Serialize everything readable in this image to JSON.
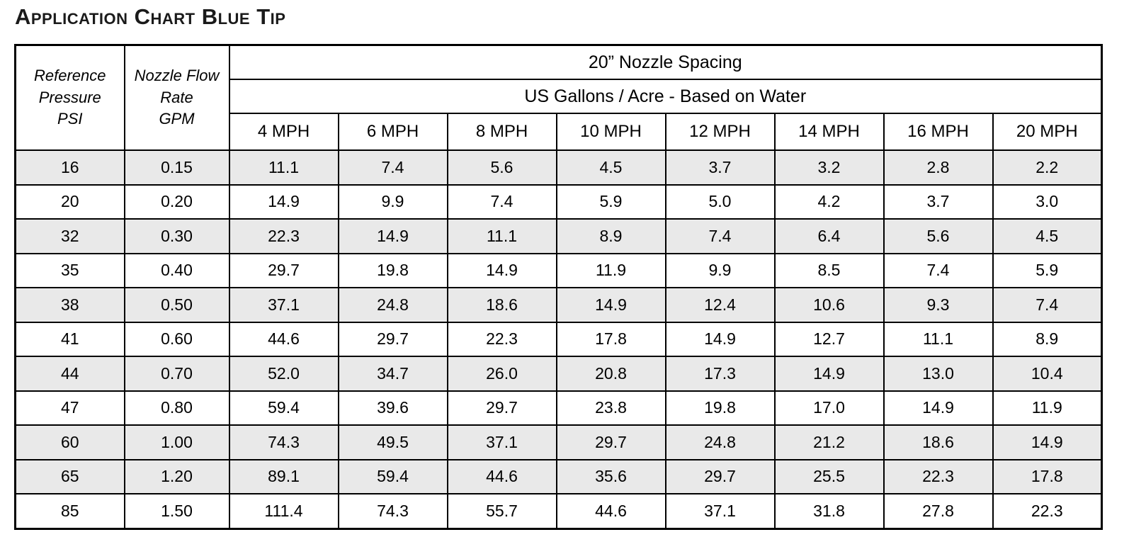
{
  "title": "Application Chart Blue Tip",
  "table": {
    "col1_header": "Reference\nPressure\nPSI",
    "col2_header": "Nozzle Flow\nRate\nGPM",
    "span_header1": "20” Nozzle Spacing",
    "span_header2": "US Gallons / Acre - Based on Water",
    "speed_headers": [
      "4 MPH",
      "6 MPH",
      "8 MPH",
      "10 MPH",
      "12 MPH",
      "14 MPH",
      "16 MPH",
      "20 MPH"
    ],
    "rows": [
      {
        "psi": "16",
        "gpm": "0.15",
        "values": [
          "11.1",
          "7.4",
          "5.6",
          "4.5",
          "3.7",
          "3.2",
          "2.8",
          "2.2"
        ],
        "shaded": true
      },
      {
        "psi": "20",
        "gpm": "0.20",
        "values": [
          "14.9",
          "9.9",
          "7.4",
          "5.9",
          "5.0",
          "4.2",
          "3.7",
          "3.0"
        ],
        "shaded": false
      },
      {
        "psi": "32",
        "gpm": "0.30",
        "values": [
          "22.3",
          "14.9",
          "11.1",
          "8.9",
          "7.4",
          "6.4",
          "5.6",
          "4.5"
        ],
        "shaded": true
      },
      {
        "psi": "35",
        "gpm": "0.40",
        "values": [
          "29.7",
          "19.8",
          "14.9",
          "11.9",
          "9.9",
          "8.5",
          "7.4",
          "5.9"
        ],
        "shaded": false
      },
      {
        "psi": "38",
        "gpm": "0.50",
        "values": [
          "37.1",
          "24.8",
          "18.6",
          "14.9",
          "12.4",
          "10.6",
          "9.3",
          "7.4"
        ],
        "shaded": true
      },
      {
        "psi": "41",
        "gpm": "0.60",
        "values": [
          "44.6",
          "29.7",
          "22.3",
          "17.8",
          "14.9",
          "12.7",
          "11.1",
          "8.9"
        ],
        "shaded": false
      },
      {
        "psi": "44",
        "gpm": "0.70",
        "values": [
          "52.0",
          "34.7",
          "26.0",
          "20.8",
          "17.3",
          "14.9",
          "13.0",
          "10.4"
        ],
        "shaded": true
      },
      {
        "psi": "47",
        "gpm": "0.80",
        "values": [
          "59.4",
          "39.6",
          "29.7",
          "23.8",
          "19.8",
          "17.0",
          "14.9",
          "11.9"
        ],
        "shaded": false
      },
      {
        "psi": "60",
        "gpm": "1.00",
        "values": [
          "74.3",
          "49.5",
          "37.1",
          "29.7",
          "24.8",
          "21.2",
          "18.6",
          "14.9"
        ],
        "shaded": true
      },
      {
        "psi": "65",
        "gpm": "1.20",
        "values": [
          "89.1",
          "59.4",
          "44.6",
          "35.6",
          "29.7",
          "25.5",
          "22.3",
          "17.8"
        ],
        "shaded": true
      },
      {
        "psi": "85",
        "gpm": "1.50",
        "values": [
          "111.4",
          "74.3",
          "55.7",
          "44.6",
          "37.1",
          "31.8",
          "27.8",
          "22.3"
        ],
        "shaded": false
      }
    ]
  }
}
